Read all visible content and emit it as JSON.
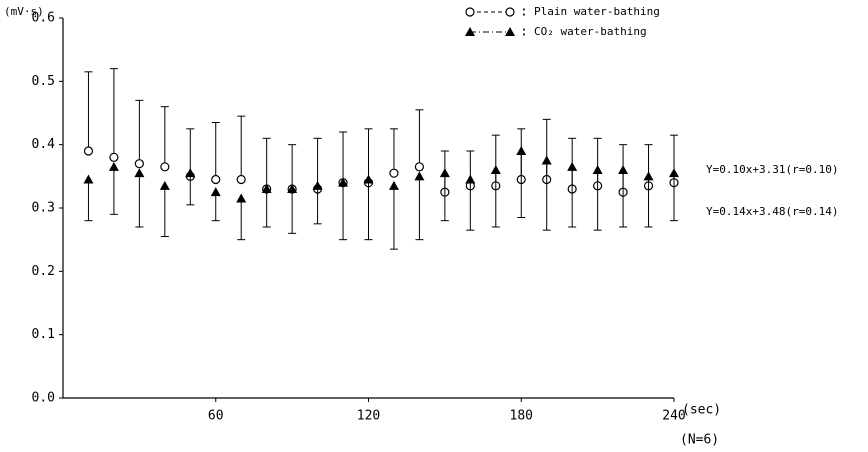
{
  "chart_data": {
    "type": "errorbar",
    "y_label": "(mV·s)",
    "x_label": "(sec)",
    "note": "(N=6)",
    "x": [
      10,
      20,
      30,
      40,
      50,
      60,
      70,
      80,
      90,
      100,
      110,
      120,
      130,
      140,
      150,
      160,
      170,
      180,
      190,
      200,
      210,
      220,
      230,
      240
    ],
    "series": [
      {
        "name": "Plain water-bathing",
        "color": "#000000",
        "marker": "circle",
        "line": "dashed",
        "error_direction": "up",
        "values": [
          0.39,
          0.38,
          0.37,
          0.365,
          0.35,
          0.345,
          0.345,
          0.33,
          0.33,
          0.33,
          0.34,
          0.34,
          0.355,
          0.365,
          0.325,
          0.335,
          0.335,
          0.345,
          0.345,
          0.33,
          0.335,
          0.325,
          0.335,
          0.34
        ],
        "errors": [
          0.125,
          0.14,
          0.1,
          0.095,
          0.075,
          0.09,
          0.1,
          0.08,
          0.07,
          0.08,
          0.08,
          0.085,
          0.07,
          0.09,
          0.065,
          0.055,
          0.08,
          0.08,
          0.095,
          0.08,
          0.075,
          0.075,
          0.065,
          0.075
        ]
      },
      {
        "name": "CO₂ water-bathing",
        "color": "#000000",
        "marker": "triangle",
        "line": "dashdot",
        "error_direction": "down",
        "values": [
          0.345,
          0.365,
          0.355,
          0.335,
          0.355,
          0.325,
          0.315,
          0.33,
          0.33,
          0.335,
          0.34,
          0.345,
          0.335,
          0.35,
          0.355,
          0.345,
          0.36,
          0.39,
          0.375,
          0.365,
          0.36,
          0.36,
          0.35,
          0.355
        ],
        "errors": [
          0.065,
          0.075,
          0.085,
          0.08,
          0.05,
          0.045,
          0.065,
          0.06,
          0.07,
          0.06,
          0.09,
          0.095,
          0.1,
          0.1,
          0.075,
          0.08,
          0.09,
          0.105,
          0.11,
          0.095,
          0.095,
          0.09,
          0.08,
          0.075
        ]
      }
    ],
    "annotations": [
      "Y=0.10x+3.31(r=0.10)",
      "Y=0.14x+3.48(r=0.14)"
    ],
    "xlim": [
      0,
      240
    ],
    "xticks": [
      60,
      120,
      180,
      240
    ],
    "ylim": [
      0,
      0.6
    ],
    "yticks": [
      {
        "value": 0,
        "label": "0.0"
      },
      0.1,
      0.2,
      0.3,
      0.4,
      0.5,
      0.6
    ],
    "legend": "top-right"
  }
}
